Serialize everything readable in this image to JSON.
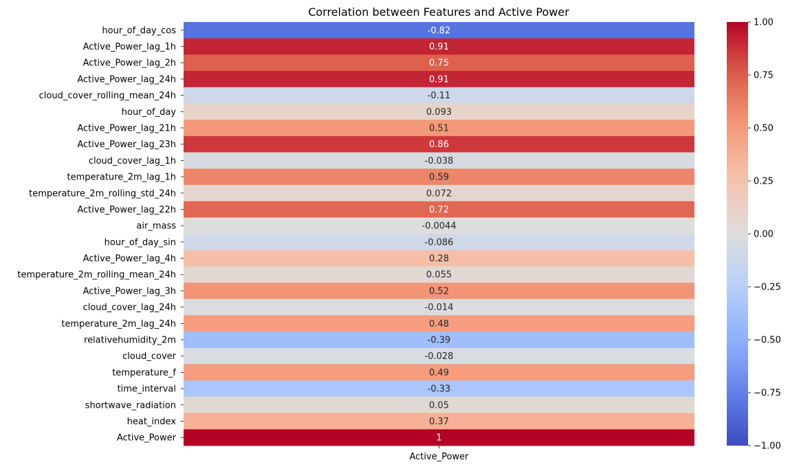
{
  "chart_data": {
    "type": "heatmap",
    "title": "Correlation between Features and Active Power",
    "colormap": "coolwarm",
    "vmin": -1.0,
    "vmax": 1.0,
    "columns": [
      "Active_Power"
    ],
    "rows": [
      {
        "feature": "hour_of_day_cos",
        "value": -0.82,
        "label": "-0.82"
      },
      {
        "feature": "Active_Power_lag_1h",
        "value": 0.91,
        "label": "0.91"
      },
      {
        "feature": "Active_Power_lag_2h",
        "value": 0.75,
        "label": "0.75"
      },
      {
        "feature": "Active_Power_lag_24h",
        "value": 0.91,
        "label": "0.91"
      },
      {
        "feature": "cloud_cover_rolling_mean_24h",
        "value": -0.11,
        "label": "-0.11"
      },
      {
        "feature": "hour_of_day",
        "value": 0.093,
        "label": "0.093"
      },
      {
        "feature": "Active_Power_lag_21h",
        "value": 0.51,
        "label": "0.51"
      },
      {
        "feature": "Active_Power_lag_23h",
        "value": 0.86,
        "label": "0.86"
      },
      {
        "feature": "cloud_cover_lag_1h",
        "value": -0.038,
        "label": "-0.038"
      },
      {
        "feature": "temperature_2m_lag_1h",
        "value": 0.59,
        "label": "0.59"
      },
      {
        "feature": "temperature_2m_rolling_std_24h",
        "value": 0.072,
        "label": "0.072"
      },
      {
        "feature": "Active_Power_lag_22h",
        "value": 0.72,
        "label": "0.72"
      },
      {
        "feature": "air_mass",
        "value": -0.0044,
        "label": "-0.0044"
      },
      {
        "feature": "hour_of_day_sin",
        "value": -0.086,
        "label": "-0.086"
      },
      {
        "feature": "Active_Power_lag_4h",
        "value": 0.28,
        "label": "0.28"
      },
      {
        "feature": "temperature_2m_rolling_mean_24h",
        "value": 0.055,
        "label": "0.055"
      },
      {
        "feature": "Active_Power_lag_3h",
        "value": 0.52,
        "label": "0.52"
      },
      {
        "feature": "cloud_cover_lag_24h",
        "value": -0.014,
        "label": "-0.014"
      },
      {
        "feature": "temperature_2m_lag_24h",
        "value": 0.48,
        "label": "0.48"
      },
      {
        "feature": "relativehumidity_2m",
        "value": -0.39,
        "label": "-0.39"
      },
      {
        "feature": "cloud_cover",
        "value": -0.028,
        "label": "-0.028"
      },
      {
        "feature": "temperature_f",
        "value": 0.49,
        "label": "0.49"
      },
      {
        "feature": "time_interval",
        "value": -0.33,
        "label": "-0.33"
      },
      {
        "feature": "shortwave_radiation",
        "value": 0.05,
        "label": "0.05"
      },
      {
        "feature": "heat_index",
        "value": 0.37,
        "label": "0.37"
      },
      {
        "feature": "Active_Power",
        "value": 1.0,
        "label": "1"
      }
    ],
    "colorbar": {
      "ticks": [
        1.0,
        0.75,
        0.5,
        0.25,
        0.0,
        -0.25,
        -0.5,
        -0.75,
        -1.0
      ],
      "tick_labels": [
        "1.00",
        "0.75",
        "0.50",
        "0.25",
        "0.00",
        "−0.25",
        "−0.50",
        "−0.75",
        "−1.00"
      ]
    }
  }
}
